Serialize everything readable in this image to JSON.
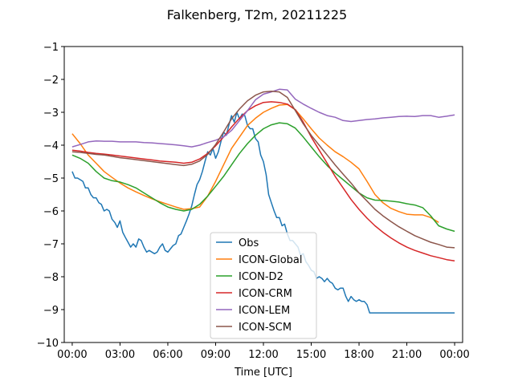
{
  "chart_data": {
    "type": "line",
    "title": "Falkenberg, T2m, 20211225",
    "xlabel": "Time [UTC]",
    "ylabel": "",
    "xlim": [
      -0.5,
      24.5
    ],
    "ylim": [
      -10,
      -1
    ],
    "grid": false,
    "legend_position": "bottom-center",
    "xticks": [
      0,
      3,
      6,
      9,
      12,
      15,
      18,
      21,
      24
    ],
    "xtick_labels": [
      "00:00",
      "03:00",
      "06:00",
      "09:00",
      "12:00",
      "15:00",
      "18:00",
      "21:00",
      "00:00"
    ],
    "yticks": [
      -10,
      -9,
      -8,
      -7,
      -6,
      -5,
      -4,
      -3,
      -2,
      -1
    ],
    "ytick_labels": [
      "−10",
      "−9",
      "−8",
      "−7",
      "−6",
      "−5",
      "−4",
      "−3",
      "−2",
      "−1"
    ],
    "series": [
      {
        "name": "Obs",
        "color": "#1f77b4",
        "x": [
          0.0,
          0.17,
          0.33,
          0.5,
          0.67,
          0.83,
          1.0,
          1.17,
          1.33,
          1.5,
          1.67,
          1.83,
          2.0,
          2.17,
          2.33,
          2.5,
          2.67,
          2.83,
          3.0,
          3.17,
          3.33,
          3.5,
          3.67,
          3.83,
          4.0,
          4.17,
          4.33,
          4.5,
          4.67,
          4.83,
          5.0,
          5.17,
          5.33,
          5.5,
          5.67,
          5.83,
          6.0,
          6.17,
          6.33,
          6.5,
          6.67,
          6.83,
          7.0,
          7.17,
          7.33,
          7.5,
          7.67,
          7.83,
          8.0,
          8.17,
          8.33,
          8.5,
          8.67,
          8.83,
          9.0,
          9.17,
          9.33,
          9.5,
          9.67,
          9.83,
          10.0,
          10.17,
          10.33,
          10.5,
          10.67,
          10.83,
          11.0,
          11.17,
          11.33,
          11.5,
          11.67,
          11.83,
          12.0,
          12.17,
          12.33,
          12.5,
          12.67,
          12.83,
          13.0,
          13.17,
          13.33,
          13.5,
          13.67,
          13.83,
          14.0,
          14.17,
          14.33,
          14.5,
          14.67,
          14.83,
          15.0,
          15.17,
          15.33,
          15.5,
          15.67,
          15.83,
          16.0,
          16.17,
          16.33,
          16.5,
          16.67,
          16.83,
          17.0,
          17.17,
          17.33,
          17.5,
          17.67,
          17.83,
          18.0,
          18.17,
          18.33,
          18.5,
          18.67,
          18.83,
          19.0,
          19.17,
          19.33,
          19.5,
          19.67,
          19.83,
          20.0,
          20.17,
          20.33,
          20.5,
          20.67,
          20.83,
          21.0,
          21.17,
          21.33,
          21.5,
          21.67,
          21.83,
          22.0,
          22.17,
          22.33,
          22.5,
          22.67,
          22.83,
          23.0,
          23.17,
          23.33,
          23.5,
          23.67,
          23.83,
          24.0
        ],
        "values": [
          -4.8,
          -5.0,
          -5.0,
          -5.05,
          -5.1,
          -5.3,
          -5.3,
          -5.5,
          -5.6,
          -5.6,
          -5.75,
          -5.8,
          -6.0,
          -5.95,
          -6.0,
          -6.25,
          -6.35,
          -6.5,
          -6.3,
          -6.65,
          -6.8,
          -6.95,
          -7.1,
          -7.0,
          -7.1,
          -6.85,
          -6.9,
          -7.1,
          -7.25,
          -7.2,
          -7.25,
          -7.3,
          -7.25,
          -7.1,
          -7.0,
          -7.2,
          -7.25,
          -7.15,
          -7.05,
          -7.0,
          -6.75,
          -6.7,
          -6.5,
          -6.3,
          -6.1,
          -5.85,
          -5.5,
          -5.2,
          -5.05,
          -4.8,
          -4.5,
          -4.2,
          -4.3,
          -4.1,
          -4.4,
          -4.2,
          -3.9,
          -3.6,
          -3.7,
          -3.4,
          -3.1,
          -3.3,
          -3.0,
          -3.2,
          -3.05,
          -3.1,
          -3.4,
          -3.5,
          -3.5,
          -3.8,
          -3.9,
          -4.3,
          -4.5,
          -4.9,
          -5.5,
          -5.75,
          -6.0,
          -6.2,
          -6.2,
          -6.45,
          -6.4,
          -6.7,
          -6.9,
          -6.9,
          -7.0,
          -7.1,
          -7.35,
          -7.3,
          -7.55,
          -7.65,
          -7.8,
          -7.85,
          -8.05,
          -8.0,
          -8.05,
          -8.15,
          -8.05,
          -8.15,
          -8.2,
          -8.35,
          -8.4,
          -8.35,
          -8.35,
          -8.6,
          -8.75,
          -8.6,
          -8.7,
          -8.75,
          -8.7,
          -8.75,
          -8.75,
          -8.85,
          -9.1,
          -9.1,
          -9.1,
          -9.1,
          -9.1,
          -9.1,
          -9.1,
          -9.1,
          -9.1,
          -9.1,
          -9.1,
          -9.1,
          -9.1,
          -9.1,
          -9.1,
          -9.1,
          -9.1,
          -9.1,
          -9.1,
          -9.1,
          -9.1,
          -9.1,
          -9.1,
          -9.1,
          -9.1,
          -9.1,
          -9.1,
          -9.1,
          -9.1,
          -9.1,
          -9.1,
          -9.1,
          -9.1
        ]
      },
      {
        "name": "ICON-Global",
        "color": "#ff7f0e",
        "x": [
          0,
          0.5,
          1,
          1.5,
          2,
          2.5,
          3,
          3.5,
          4,
          4.5,
          5,
          5.5,
          6,
          6.5,
          7,
          7.5,
          8,
          8.5,
          9,
          9.5,
          10,
          10.5,
          11,
          11.5,
          12,
          12.5,
          13,
          13.5,
          14,
          14.5,
          15,
          15.5,
          16,
          16.5,
          17,
          17.5,
          18,
          18.5,
          19,
          19.5,
          20,
          20.5,
          21,
          21.5,
          22,
          22.5,
          23
        ],
        "values": [
          -3.65,
          -3.95,
          -4.3,
          -4.55,
          -4.8,
          -4.98,
          -5.15,
          -5.3,
          -5.42,
          -5.53,
          -5.63,
          -5.72,
          -5.8,
          -5.88,
          -5.95,
          -5.93,
          -5.88,
          -5.55,
          -5.1,
          -4.6,
          -4.1,
          -3.75,
          -3.4,
          -3.18,
          -3.0,
          -2.88,
          -2.78,
          -2.76,
          -2.92,
          -3.2,
          -3.5,
          -3.78,
          -4.0,
          -4.2,
          -4.35,
          -4.52,
          -4.72,
          -5.1,
          -5.5,
          -5.75,
          -5.92,
          -6.02,
          -6.1,
          -6.12,
          -6.12,
          -6.2,
          -6.35
        ]
      },
      {
        "name": "ICON-D2",
        "color": "#2ca02c",
        "x": [
          0,
          0.5,
          1,
          1.5,
          2,
          2.5,
          3,
          3.5,
          4,
          4.5,
          5,
          5.5,
          6,
          6.5,
          7,
          7.5,
          8,
          8.5,
          9,
          9.5,
          10,
          10.5,
          11,
          11.5,
          12,
          12.5,
          13,
          13.5,
          14,
          14.5,
          15,
          15.5,
          16,
          16.5,
          17,
          17.5,
          18,
          18.5,
          19,
          19.5,
          20,
          20.5,
          21,
          21.5,
          22,
          22.5,
          23,
          23.5,
          24
        ],
        "values": [
          -4.3,
          -4.4,
          -4.55,
          -4.8,
          -5.0,
          -5.08,
          -5.12,
          -5.2,
          -5.3,
          -5.45,
          -5.6,
          -5.75,
          -5.88,
          -5.95,
          -6.0,
          -5.95,
          -5.8,
          -5.55,
          -5.25,
          -4.95,
          -4.6,
          -4.25,
          -3.95,
          -3.7,
          -3.5,
          -3.38,
          -3.32,
          -3.35,
          -3.48,
          -3.75,
          -4.05,
          -4.35,
          -4.62,
          -4.85,
          -5.05,
          -5.25,
          -5.45,
          -5.6,
          -5.67,
          -5.68,
          -5.7,
          -5.73,
          -5.78,
          -5.82,
          -5.9,
          -6.15,
          -6.45,
          -6.55,
          -6.62
        ]
      },
      {
        "name": "ICON-CRM",
        "color": "#d62728",
        "x": [
          0,
          0.5,
          1,
          1.5,
          2,
          2.5,
          3,
          3.5,
          4,
          4.5,
          5,
          5.5,
          6,
          6.5,
          7,
          7.5,
          8,
          8.5,
          9,
          9.5,
          10,
          10.5,
          11,
          11.5,
          12,
          12.5,
          13,
          13.5,
          14,
          14.5,
          15,
          15.5,
          16,
          16.5,
          17,
          17.5,
          18,
          18.5,
          19,
          19.5,
          20,
          20.5,
          21,
          21.5,
          22,
          22.5,
          23,
          23.5,
          24
        ],
        "values": [
          -4.15,
          -4.18,
          -4.22,
          -4.25,
          -4.27,
          -4.3,
          -4.33,
          -4.36,
          -4.39,
          -4.42,
          -4.45,
          -4.48,
          -4.5,
          -4.52,
          -4.55,
          -4.52,
          -4.42,
          -4.25,
          -4.02,
          -3.75,
          -3.45,
          -3.18,
          -2.95,
          -2.8,
          -2.7,
          -2.68,
          -2.7,
          -2.75,
          -2.92,
          -3.3,
          -3.75,
          -4.15,
          -4.55,
          -4.95,
          -5.3,
          -5.65,
          -5.95,
          -6.22,
          -6.45,
          -6.65,
          -6.82,
          -6.97,
          -7.1,
          -7.2,
          -7.28,
          -7.36,
          -7.42,
          -7.48,
          -7.52
        ]
      },
      {
        "name": "ICON-LEM",
        "color": "#9467bd",
        "x": [
          0,
          0.5,
          1,
          1.5,
          2,
          2.5,
          3,
          3.5,
          4,
          4.5,
          5,
          5.5,
          6,
          6.5,
          7,
          7.5,
          8,
          8.5,
          9,
          9.5,
          10,
          10.5,
          11,
          11.5,
          12,
          12.5,
          13,
          13.5,
          14,
          14.5,
          15,
          15.5,
          16,
          16.5,
          17,
          17.5,
          18,
          18.5,
          19,
          19.5,
          20,
          20.5,
          21,
          21.5,
          22,
          22.5,
          23,
          23.5,
          24
        ],
        "values": [
          -4.05,
          -3.98,
          -3.9,
          -3.87,
          -3.88,
          -3.88,
          -3.9,
          -3.9,
          -3.9,
          -3.92,
          -3.93,
          -3.95,
          -3.97,
          -3.99,
          -4.02,
          -4.05,
          -4.0,
          -3.92,
          -3.85,
          -3.75,
          -3.55,
          -3.25,
          -2.95,
          -2.62,
          -2.45,
          -2.38,
          -2.3,
          -2.32,
          -2.6,
          -2.75,
          -2.88,
          -3.0,
          -3.1,
          -3.15,
          -3.25,
          -3.28,
          -3.25,
          -3.22,
          -3.2,
          -3.17,
          -3.15,
          -3.13,
          -3.12,
          -3.13,
          -3.1,
          -3.1,
          -3.15,
          -3.12,
          -3.08
        ]
      },
      {
        "name": "ICON-SCM",
        "color": "#8c564b",
        "x": [
          0,
          0.5,
          1,
          1.5,
          2,
          2.5,
          3,
          3.5,
          4,
          4.5,
          5,
          5.5,
          6,
          6.5,
          7,
          7.5,
          8,
          8.5,
          9,
          9.5,
          10,
          10.5,
          11,
          11.5,
          12,
          12.5,
          13,
          13.5,
          14,
          14.5,
          15,
          15.5,
          16,
          16.5,
          17,
          17.5,
          18,
          18.5,
          19,
          19.5,
          20,
          20.5,
          21,
          21.5,
          22,
          22.5,
          23,
          23.5,
          24
        ],
        "values": [
          -4.2,
          -4.22,
          -4.25,
          -4.28,
          -4.3,
          -4.34,
          -4.38,
          -4.41,
          -4.44,
          -4.47,
          -4.5,
          -4.53,
          -4.56,
          -4.59,
          -4.62,
          -4.58,
          -4.48,
          -4.28,
          -3.98,
          -3.6,
          -3.2,
          -2.9,
          -2.65,
          -2.48,
          -2.38,
          -2.36,
          -2.38,
          -2.55,
          -2.95,
          -3.35,
          -3.7,
          -4.0,
          -4.3,
          -4.6,
          -4.88,
          -5.15,
          -5.45,
          -5.7,
          -5.95,
          -6.15,
          -6.32,
          -6.48,
          -6.62,
          -6.75,
          -6.85,
          -6.95,
          -7.02,
          -7.1,
          -7.12
        ]
      }
    ]
  }
}
